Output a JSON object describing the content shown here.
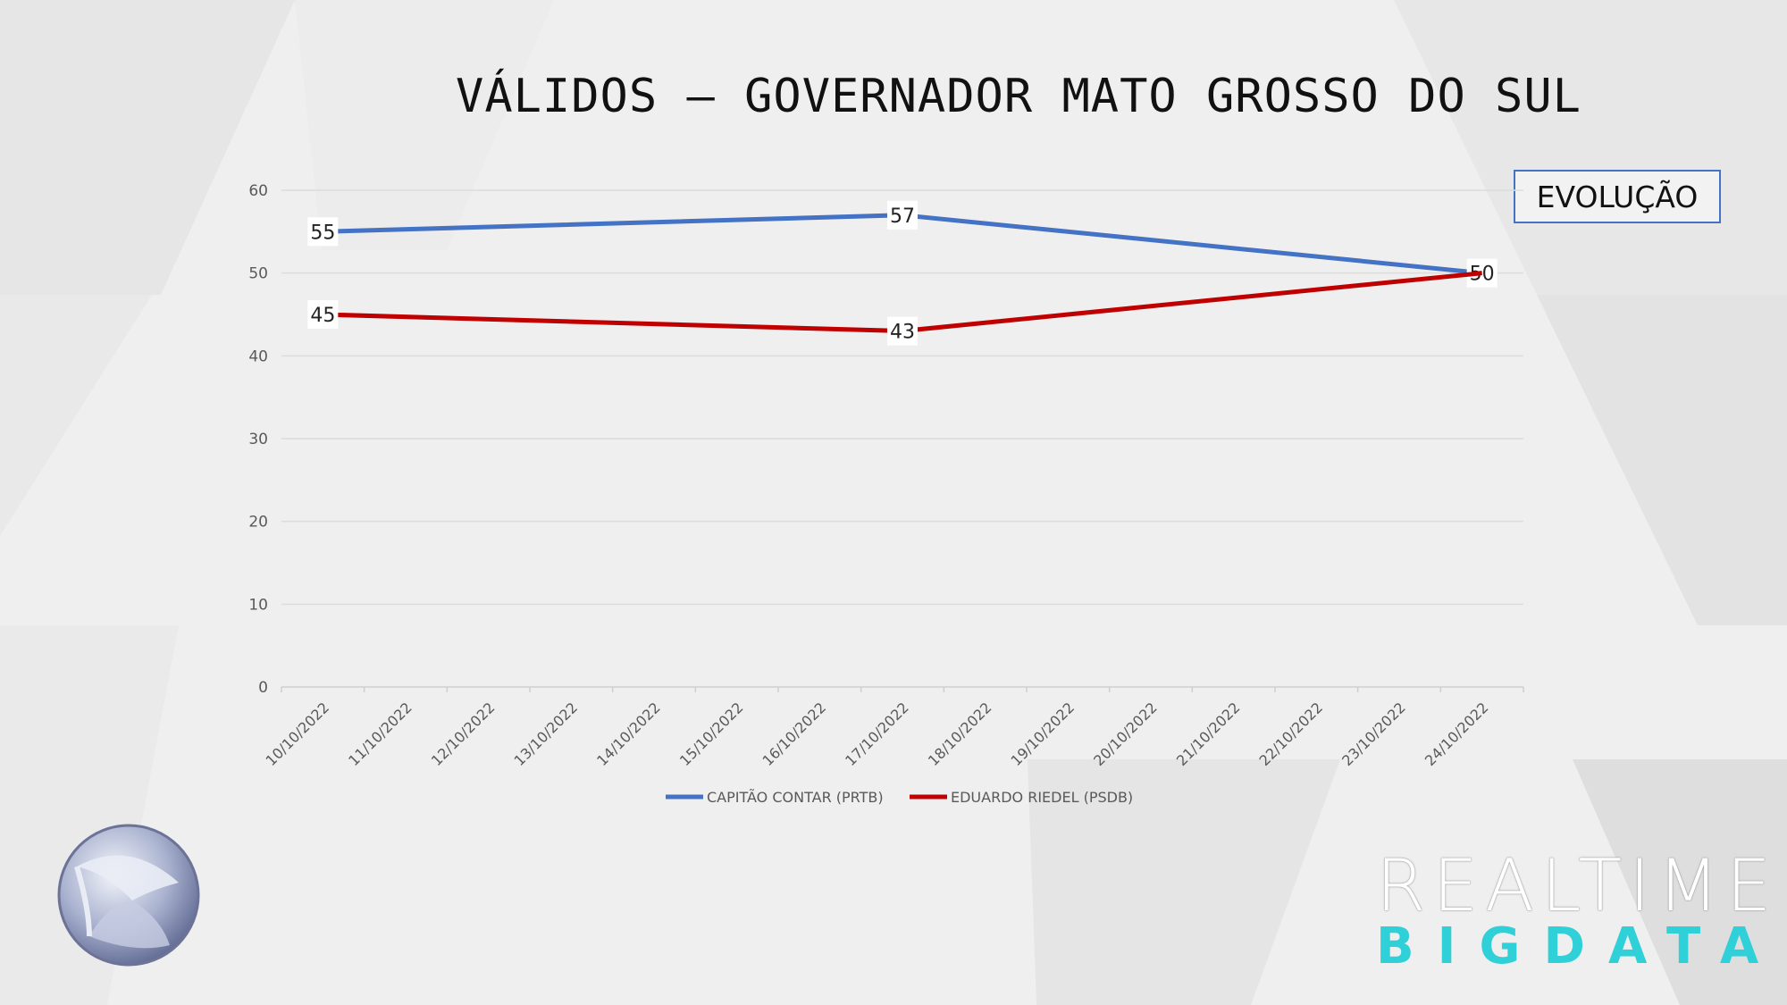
{
  "title": "VÁLIDOS – GOVERNADOR MATO GROSSO DO SUL",
  "badge": "EVOLUÇÃO",
  "brand": {
    "line1": "REALTIME",
    "line2": "BIGDATA",
    "line2_color": "#2fd0d8"
  },
  "chart_data": {
    "type": "line",
    "title": "VÁLIDOS – GOVERNADOR MATO GROSSO DO SUL",
    "xlabel": "",
    "ylabel": "",
    "categories": [
      "10/10/2022",
      "11/10/2022",
      "12/10/2022",
      "13/10/2022",
      "14/10/2022",
      "15/10/2022",
      "16/10/2022",
      "17/10/2022",
      "18/10/2022",
      "19/10/2022",
      "20/10/2022",
      "21/10/2022",
      "22/10/2022",
      "23/10/2022",
      "24/10/2022"
    ],
    "y_ticks": [
      0,
      10,
      20,
      30,
      40,
      50,
      60
    ],
    "ylim": [
      0,
      60
    ],
    "grid": true,
    "legend_position": "bottom",
    "series": [
      {
        "name": "CAPITÃO CONTAR (PRTB)",
        "color": "#4472c4",
        "points": [
          {
            "x": "10/10/2022",
            "y": 55
          },
          {
            "x": "17/10/2022",
            "y": 57
          },
          {
            "x": "24/10/2022",
            "y": 50
          }
        ],
        "data_labels": [
          "55",
          "57",
          "50"
        ]
      },
      {
        "name": "EDUARDO RIEDEL (PSDB)",
        "color": "#c00000",
        "points": [
          {
            "x": "10/10/2022",
            "y": 45
          },
          {
            "x": "17/10/2022",
            "y": 43
          },
          {
            "x": "24/10/2022",
            "y": 50
          }
        ],
        "data_labels": [
          "45",
          "43",
          ""
        ]
      }
    ]
  }
}
